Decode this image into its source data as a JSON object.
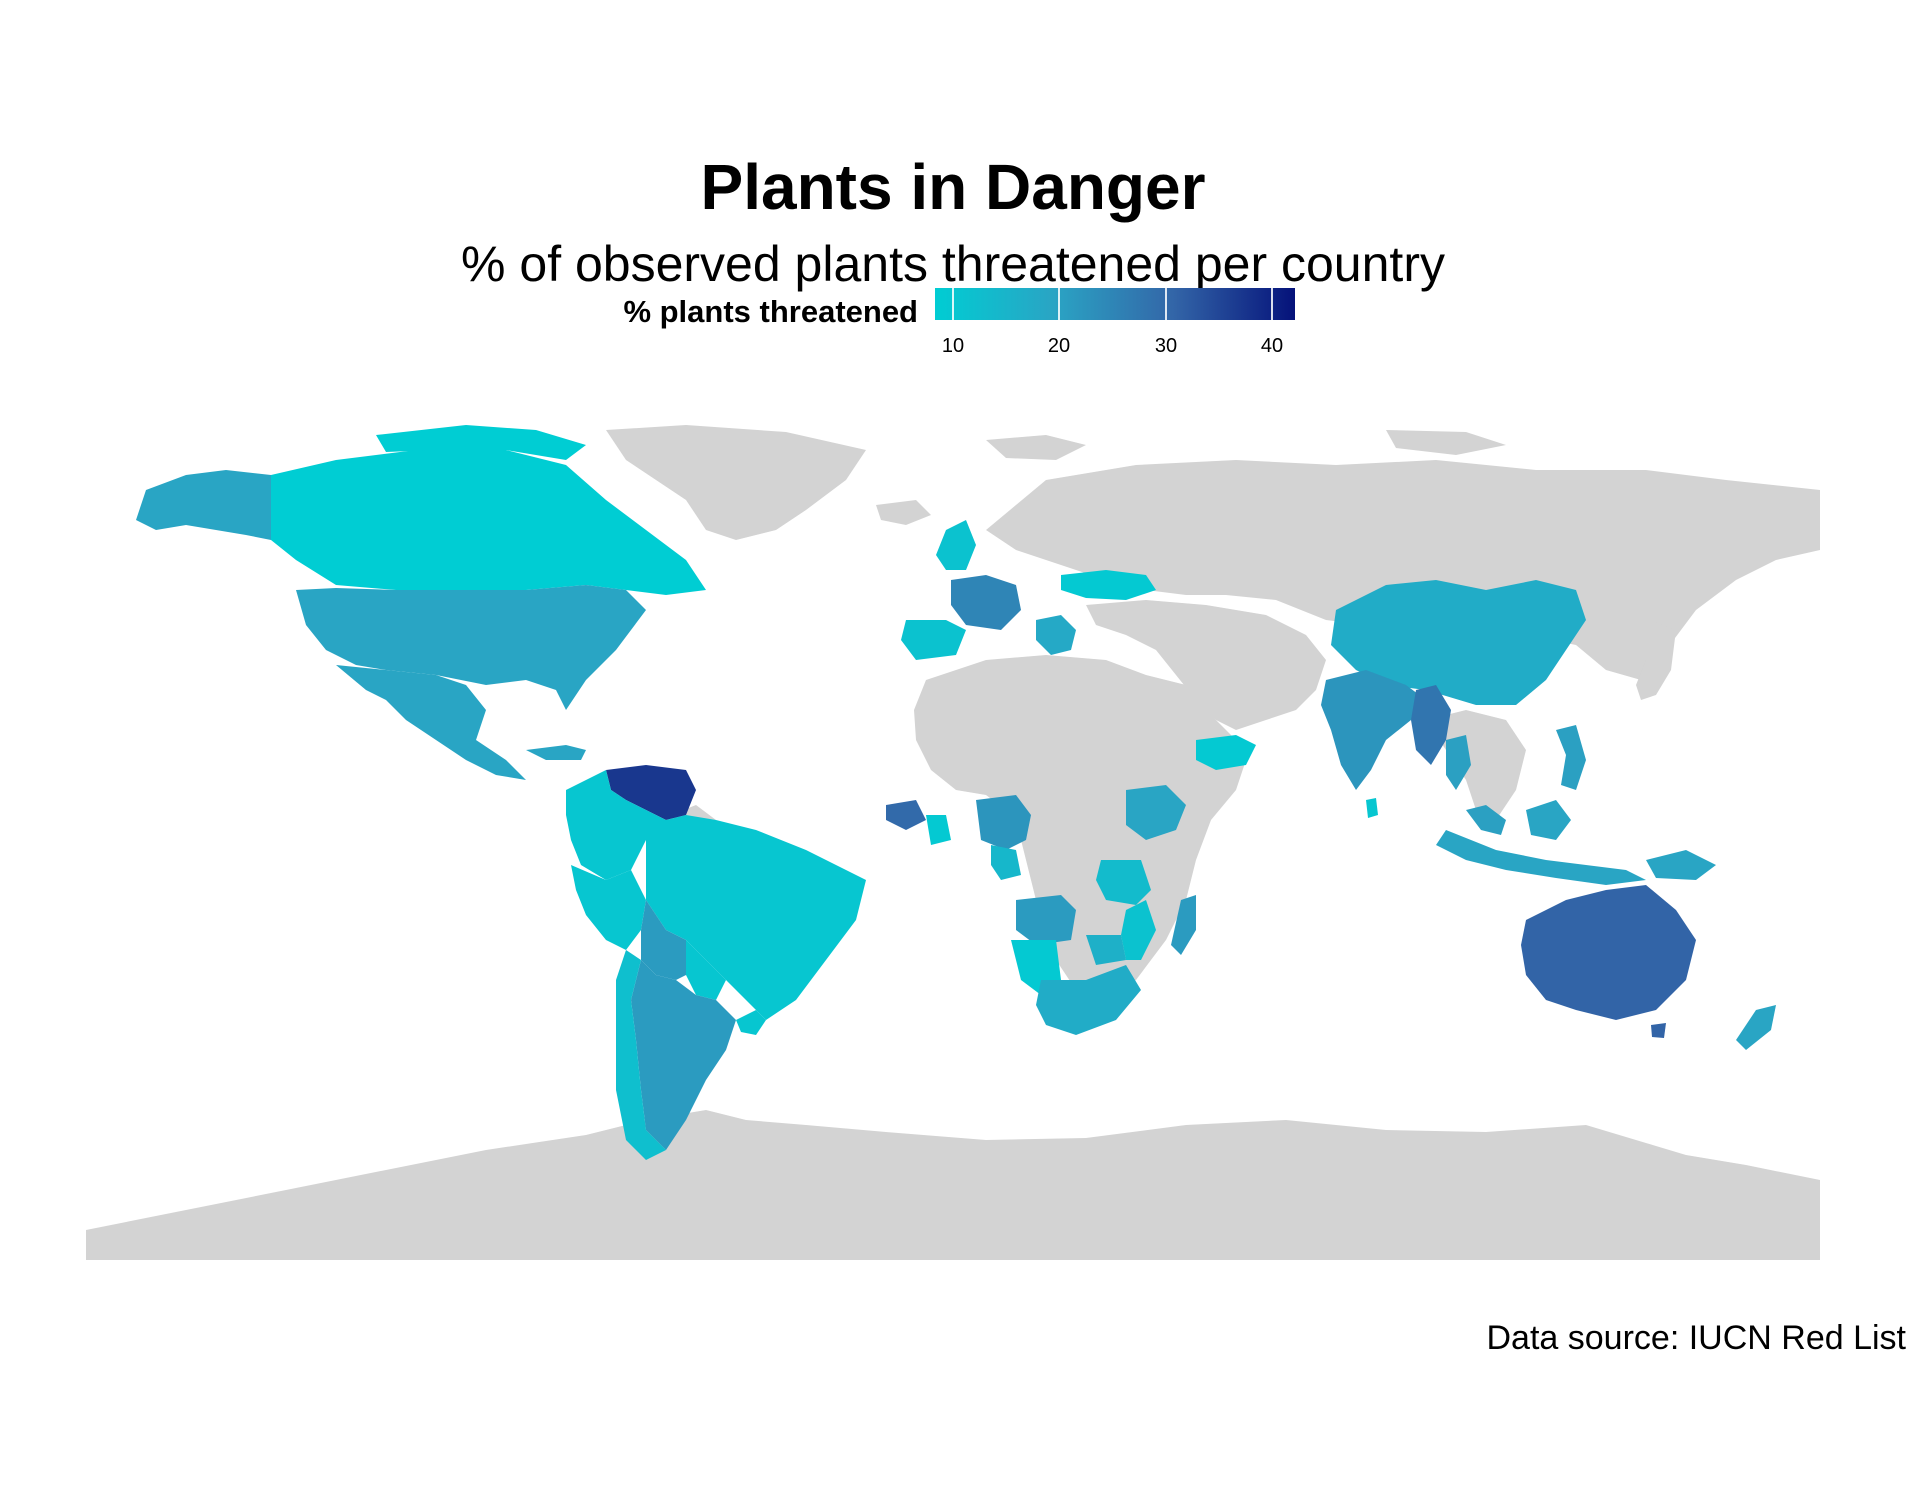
{
  "title": "Plants in Danger",
  "subtitle": "% of observed plants threatened per country",
  "legend": {
    "title": "% plants threatened",
    "ticks": [
      "10",
      "20",
      "30",
      "40"
    ],
    "range": [
      8,
      42
    ],
    "colors": [
      "#00cdd3",
      "#2aa4c4",
      "#3366a8",
      "#05127a"
    ]
  },
  "caption": "Data source: IUCN Red List",
  "colors": {
    "no_data": "#d3d3d3",
    "background": "#ffffff"
  },
  "chart_data": {
    "type": "choropleth",
    "fill_variable": "% plants threatened",
    "regions": [
      {
        "name": "Canada",
        "value": 8
      },
      {
        "name": "Alaska",
        "value": 19
      },
      {
        "name": "United States",
        "value": 19
      },
      {
        "name": "Mexico",
        "value": 19
      },
      {
        "name": "Venezuela",
        "value": 37
      },
      {
        "name": "Colombia",
        "value": 10
      },
      {
        "name": "Brazil",
        "value": 10
      },
      {
        "name": "Peru",
        "value": 10
      },
      {
        "name": "Bolivia",
        "value": 21
      },
      {
        "name": "Argentina",
        "value": 21
      },
      {
        "name": "Chile",
        "value": 12
      },
      {
        "name": "Paraguay",
        "value": 10
      },
      {
        "name": "Uruguay",
        "value": 10
      },
      {
        "name": "France",
        "value": 25
      },
      {
        "name": "Spain",
        "value": 11
      },
      {
        "name": "United Kingdom",
        "value": 11
      },
      {
        "name": "Ukraine",
        "value": 9
      },
      {
        "name": "Balkans",
        "value": 18
      },
      {
        "name": "Guinea",
        "value": 30
      },
      {
        "name": "Ghana",
        "value": 9
      },
      {
        "name": "Cameroon",
        "value": 22
      },
      {
        "name": "Gabon",
        "value": 14
      },
      {
        "name": "Angola",
        "value": 21
      },
      {
        "name": "Namibia",
        "value": 9
      },
      {
        "name": "South Africa",
        "value": 17
      },
      {
        "name": "Zimbabwe",
        "value": 16
      },
      {
        "name": "Mozambique",
        "value": 11
      },
      {
        "name": "Ethiopia",
        "value": 19
      },
      {
        "name": "Tanzania",
        "value": 13
      },
      {
        "name": "Madagascar",
        "value": 21
      },
      {
        "name": "Yemen",
        "value": 9
      },
      {
        "name": "India",
        "value": 22
      },
      {
        "name": "Sri Lanka",
        "value": 10
      },
      {
        "name": "Myanmar",
        "value": 28
      },
      {
        "name": "Thailand",
        "value": 20
      },
      {
        "name": "China",
        "value": 17
      },
      {
        "name": "Malaysia",
        "value": 20
      },
      {
        "name": "Indonesia",
        "value": 19
      },
      {
        "name": "Philippines",
        "value": 20
      },
      {
        "name": "Papua New Guinea",
        "value": 19
      },
      {
        "name": "Australia",
        "value": 31
      },
      {
        "name": "New Zealand",
        "value": 19
      }
    ]
  }
}
